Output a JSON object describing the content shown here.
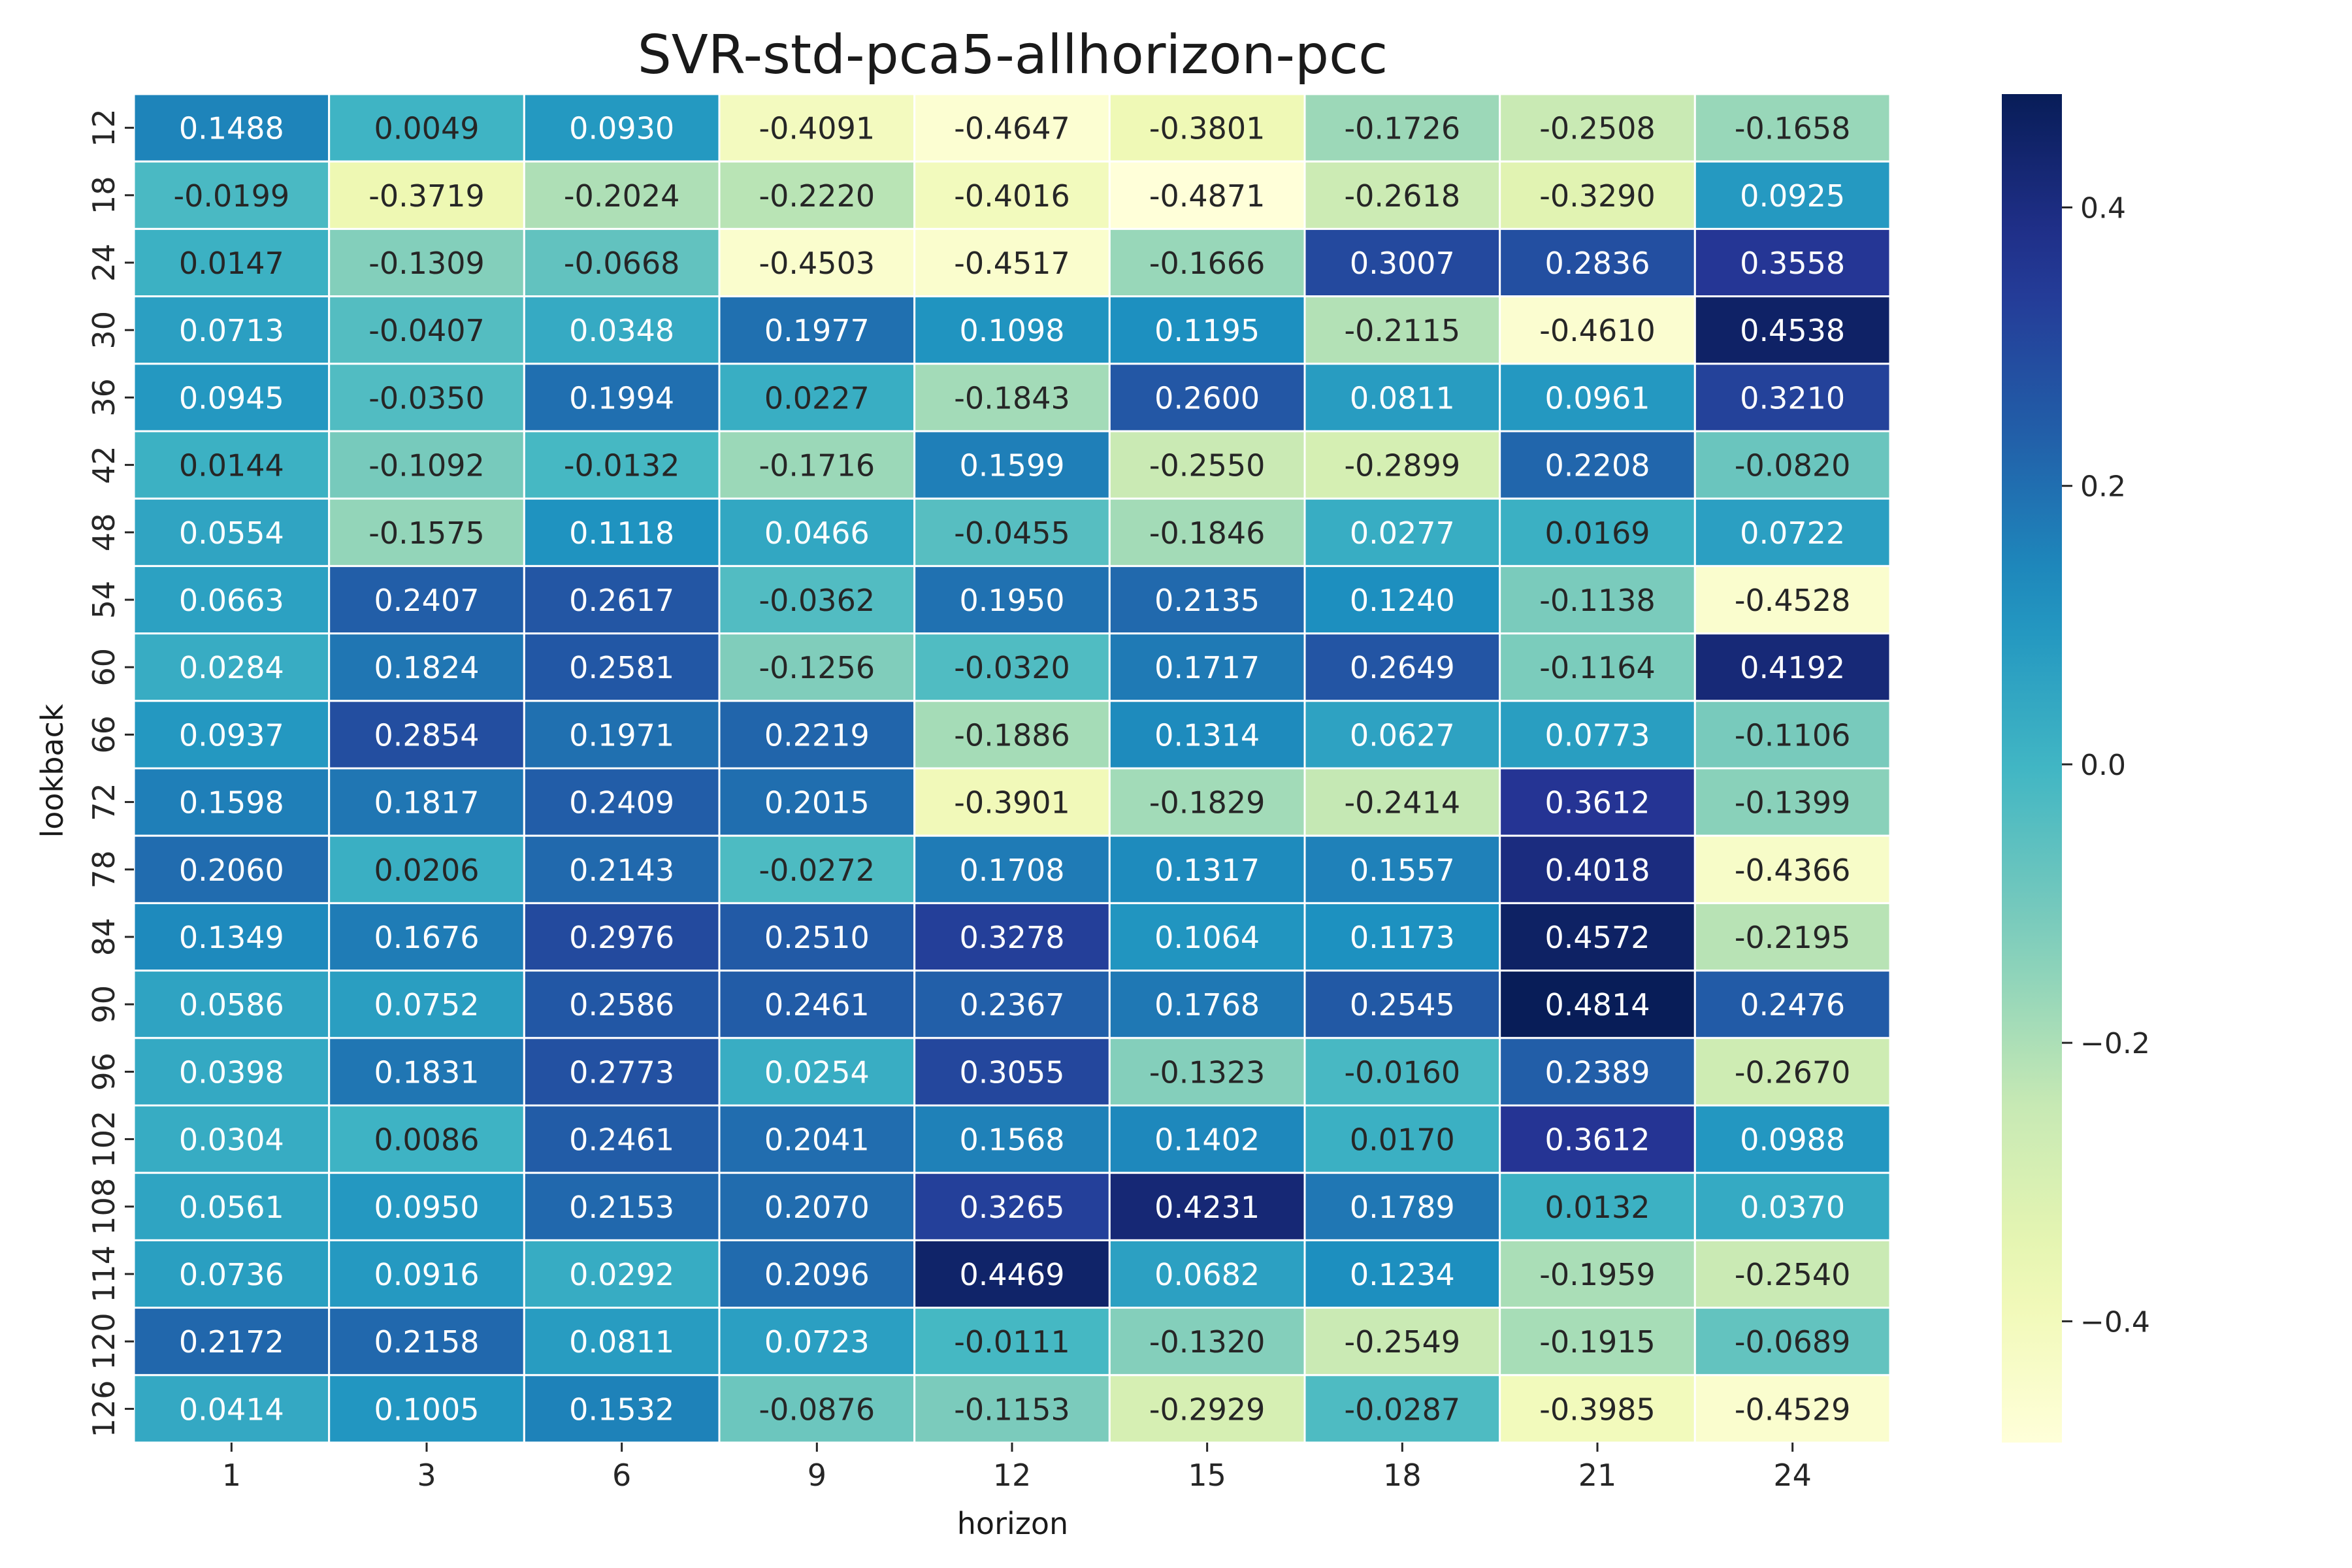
{
  "chart_data": {
    "type": "heatmap",
    "title": "SVR-std-pca5-allhorizon-pcc",
    "xlabel": "horizon",
    "ylabel": "lookback",
    "x": [
      "1",
      "3",
      "6",
      "9",
      "12",
      "15",
      "18",
      "21",
      "24"
    ],
    "y": [
      "12",
      "18",
      "24",
      "30",
      "36",
      "42",
      "48",
      "54",
      "60",
      "66",
      "72",
      "78",
      "84",
      "90",
      "96",
      "102",
      "108",
      "114",
      "120",
      "126"
    ],
    "values": [
      [
        0.1488,
        0.0049,
        0.093,
        -0.4091,
        -0.4647,
        -0.3801,
        -0.1726,
        -0.2508,
        -0.1658
      ],
      [
        -0.0199,
        -0.3719,
        -0.2024,
        -0.222,
        -0.4016,
        -0.4871,
        -0.2618,
        -0.329,
        0.0925
      ],
      [
        0.0147,
        -0.1309,
        -0.0668,
        -0.4503,
        -0.4517,
        -0.1666,
        0.3007,
        0.2836,
        0.3558
      ],
      [
        0.0713,
        -0.0407,
        0.0348,
        0.1977,
        0.1098,
        0.1195,
        -0.2115,
        -0.461,
        0.4538
      ],
      [
        0.0945,
        -0.035,
        0.1994,
        0.0227,
        -0.1843,
        0.26,
        0.0811,
        0.0961,
        0.321
      ],
      [
        0.0144,
        -0.1092,
        -0.0132,
        -0.1716,
        0.1599,
        -0.255,
        -0.2899,
        0.2208,
        -0.082
      ],
      [
        0.0554,
        -0.1575,
        0.1118,
        0.0466,
        -0.0455,
        -0.1846,
        0.0277,
        0.0169,
        0.0722
      ],
      [
        0.0663,
        0.2407,
        0.2617,
        -0.0362,
        0.195,
        0.2135,
        0.124,
        -0.1138,
        -0.4528
      ],
      [
        0.0284,
        0.1824,
        0.2581,
        -0.1256,
        -0.032,
        0.1717,
        0.2649,
        -0.1164,
        0.4192
      ],
      [
        0.0937,
        0.2854,
        0.1971,
        0.2219,
        -0.1886,
        0.1314,
        0.0627,
        0.0773,
        -0.1106
      ],
      [
        0.1598,
        0.1817,
        0.2409,
        0.2015,
        -0.3901,
        -0.1829,
        -0.2414,
        0.3612,
        -0.1399
      ],
      [
        0.206,
        0.0206,
        0.2143,
        -0.0272,
        0.1708,
        0.1317,
        0.1557,
        0.4018,
        -0.4366
      ],
      [
        0.1349,
        0.1676,
        0.2976,
        0.251,
        0.3278,
        0.1064,
        0.1173,
        0.4572,
        -0.2195
      ],
      [
        0.0586,
        0.0752,
        0.2586,
        0.2461,
        0.2367,
        0.1768,
        0.2545,
        0.4814,
        0.2476
      ],
      [
        0.0398,
        0.1831,
        0.2773,
        0.0254,
        0.3055,
        -0.1323,
        -0.016,
        0.2389,
        -0.267
      ],
      [
        0.0304,
        0.0086,
        0.2461,
        0.2041,
        0.1568,
        0.1402,
        0.017,
        0.3612,
        0.0988
      ],
      [
        0.0561,
        0.095,
        0.2153,
        0.207,
        0.3265,
        0.4231,
        0.1789,
        0.0132,
        0.037
      ],
      [
        0.0736,
        0.0916,
        0.0292,
        0.2096,
        0.4469,
        0.0682,
        0.1234,
        -0.1959,
        -0.254
      ],
      [
        0.2172,
        0.2158,
        0.0811,
        0.0723,
        -0.0111,
        -0.132,
        -0.2549,
        -0.1915,
        -0.0689
      ],
      [
        0.0414,
        0.1005,
        0.1532,
        -0.0876,
        -0.1153,
        -0.2929,
        -0.0287,
        -0.3985,
        -0.4529
      ]
    ],
    "value_format": "4 decimals",
    "colormap": "YlGnBu",
    "vmin": -0.4871,
    "vmax": 0.4814,
    "colorbar": {
      "ticks": [
        0.4,
        0.2,
        0.0,
        -0.2,
        -0.4
      ],
      "tick_labels": [
        "0.4",
        "0.2",
        "0.0",
        "−0.2",
        "−0.4"
      ]
    },
    "grid": false,
    "cell_borders": "white",
    "legend": "colorbar-right"
  }
}
